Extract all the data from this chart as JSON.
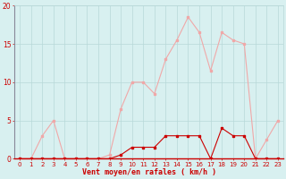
{
  "hours": [
    0,
    1,
    2,
    3,
    4,
    5,
    6,
    7,
    8,
    9,
    10,
    11,
    12,
    13,
    14,
    15,
    16,
    17,
    18,
    19,
    20,
    21,
    22,
    23
  ],
  "rafales": [
    0.0,
    0.0,
    3.0,
    5.0,
    0.0,
    0.0,
    0.0,
    0.0,
    0.5,
    6.5,
    10.0,
    10.0,
    8.5,
    13.0,
    15.5,
    18.5,
    16.5,
    11.5,
    16.5,
    15.5,
    15.0,
    0.0,
    2.5,
    5.0
  ],
  "vent_moyen": [
    0.0,
    0.0,
    0.0,
    0.0,
    0.0,
    0.0,
    0.0,
    0.0,
    0.0,
    0.5,
    1.5,
    1.5,
    1.5,
    3.0,
    3.0,
    3.0,
    3.0,
    0.0,
    4.0,
    3.0,
    3.0,
    0.0,
    0.0,
    0.0
  ],
  "line_color_rafales": "#f0a8a8",
  "line_color_vent": "#cc0000",
  "bg_color": "#d8f0f0",
  "grid_color": "#b8d8d8",
  "axis_color": "#cc0000",
  "xlabel": "Vent moyen/en rafales ( km/h )",
  "ylim": [
    0,
    20
  ],
  "xlim": [
    -0.5,
    23.5
  ],
  "yticks": [
    0,
    5,
    10,
    15,
    20
  ],
  "marker_size": 2.0
}
